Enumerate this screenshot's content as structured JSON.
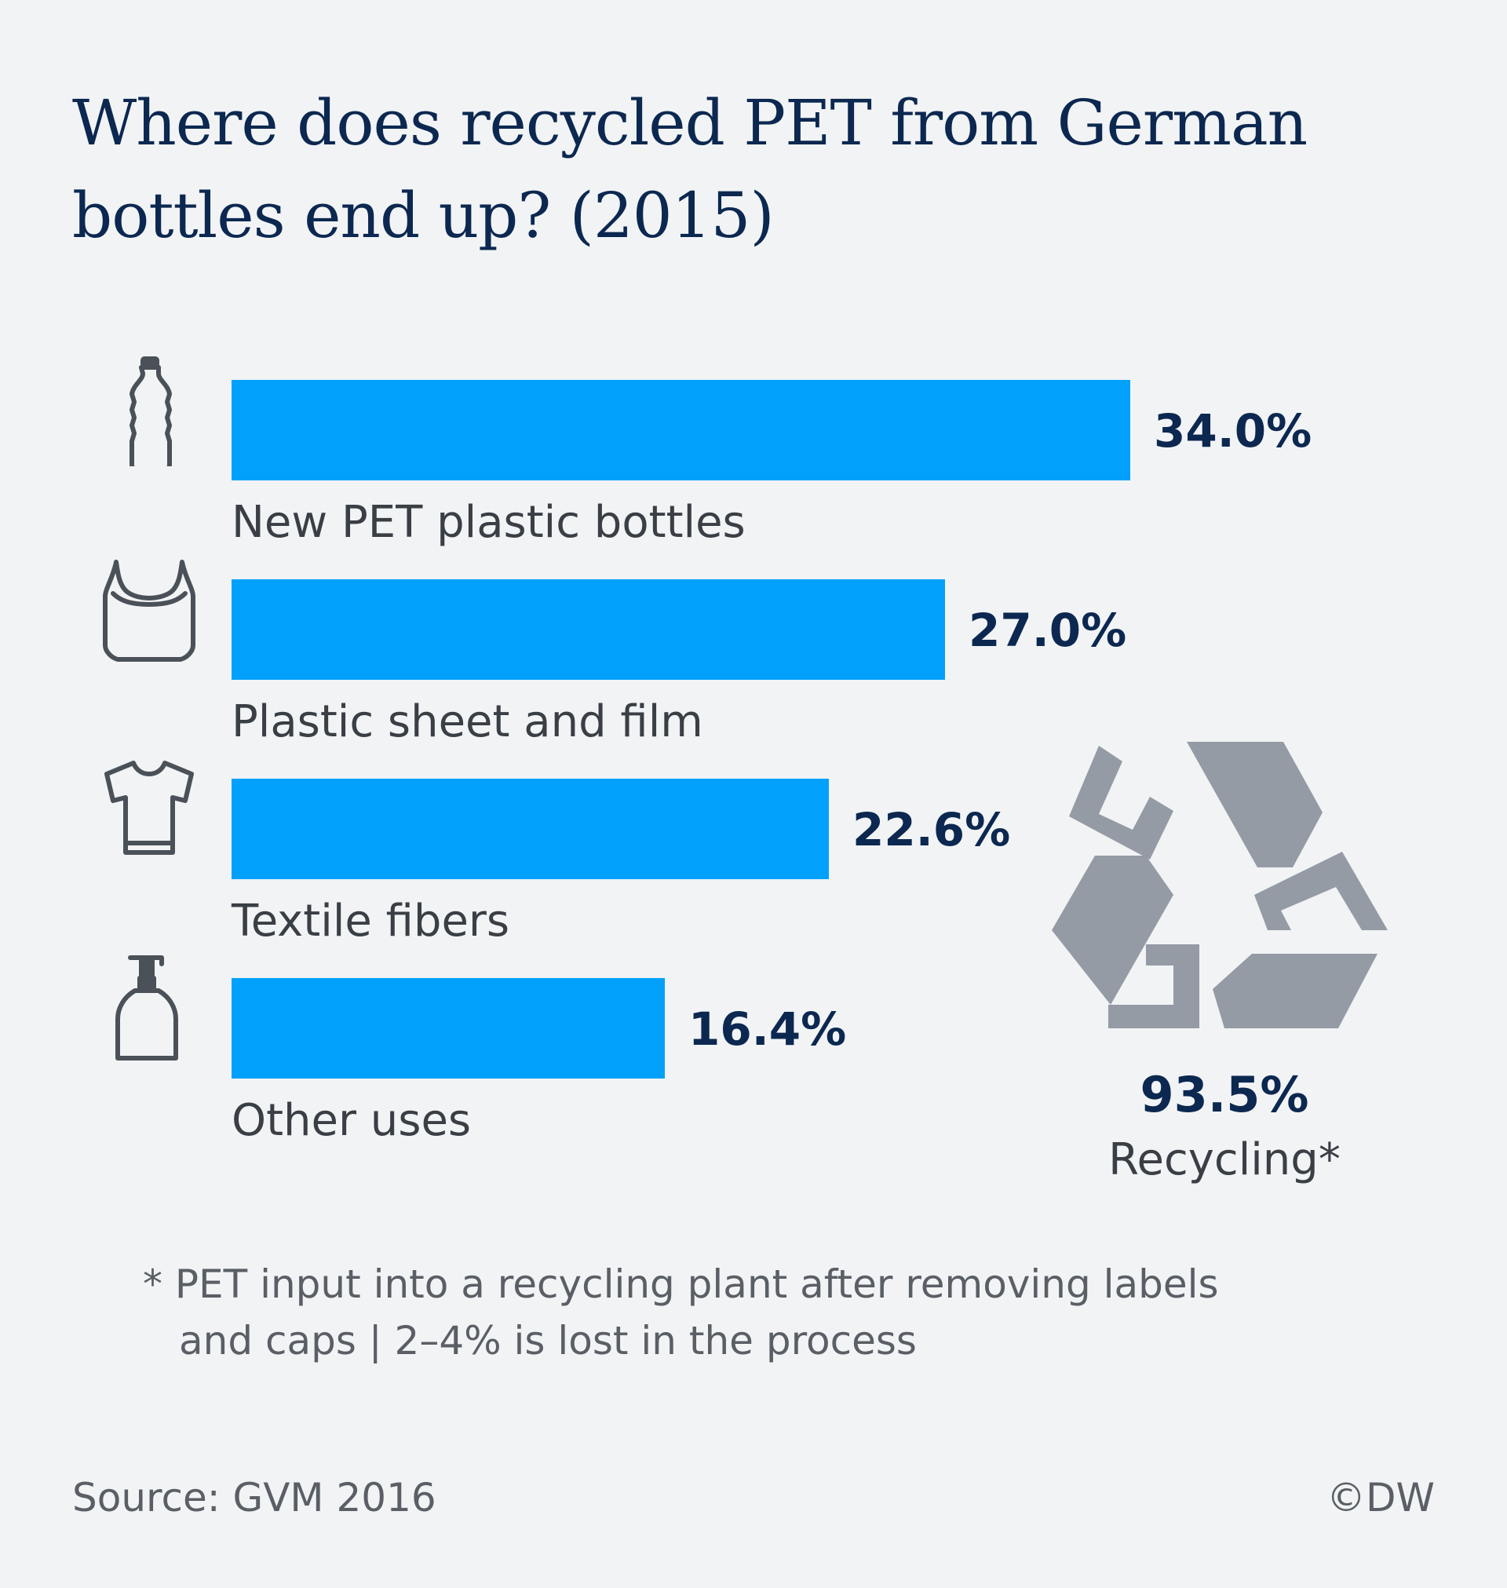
{
  "colors": {
    "background": "#f1f3f5",
    "bar": "#00a0fb",
    "title": "#0c2850",
    "value": "#0c2850",
    "label": "#3a3f45",
    "icon": "#4b5158",
    "recycle_icon": "#959ba5"
  },
  "chart_data": {
    "type": "bar",
    "orientation": "horizontal",
    "title": "Where does recycled PET from German bottles end up? (2015)",
    "categories": [
      "New PET plastic bottles",
      "Plastic sheet and film",
      "Textile fibers",
      "Other uses"
    ],
    "values": [
      34.0,
      27.0,
      22.6,
      16.4
    ],
    "value_labels": [
      "34.0%",
      "27.0%",
      "22.6%",
      "16.4%"
    ],
    "icons": [
      "bottle-icon",
      "plastic-bag-icon",
      "t-shirt-icon",
      "soap-dispenser-icon"
    ],
    "unit": "%",
    "grid": false,
    "legend": false
  },
  "summary": {
    "icon": "recycle-icon",
    "value": "93.5%",
    "label": "Recycling*"
  },
  "footnote": {
    "line1": "* PET input into a recycling plant after removing labels",
    "line2": "and caps | 2–4% is lost in the process"
  },
  "source": "Source: GVM 2016",
  "credit": "©DW"
}
